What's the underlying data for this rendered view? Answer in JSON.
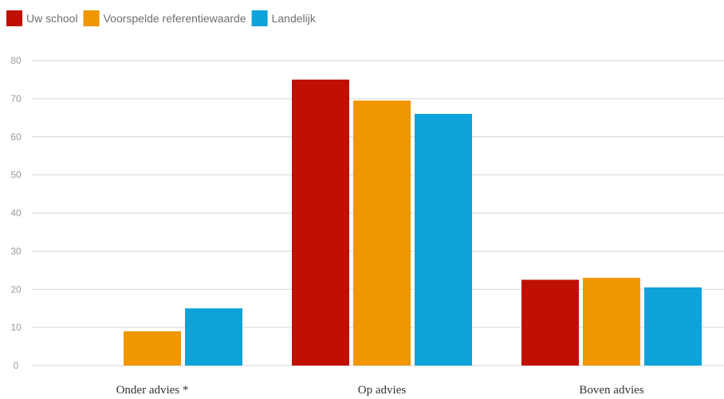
{
  "chart_data": {
    "type": "bar",
    "categories": [
      "Onder advies *",
      "Op advies",
      "Boven advies"
    ],
    "series": [
      {
        "name": "Uw school",
        "color": "#c00f03",
        "values": [
          null,
          75,
          22.5
        ]
      },
      {
        "name": "Voorspelde referentiewaarde",
        "color": "#ef9600",
        "values": [
          9,
          69.5,
          23
        ]
      },
      {
        "name": "Landelijk",
        "color": "#0da2d8",
        "values": [
          15,
          66,
          20.5
        ]
      }
    ],
    "yticks": [
      "0",
      "10",
      "20",
      "30",
      "40",
      "50",
      "60",
      "70",
      "80"
    ],
    "ylim": [
      0,
      80
    ],
    "grid": true,
    "legend_position": "top-left"
  }
}
